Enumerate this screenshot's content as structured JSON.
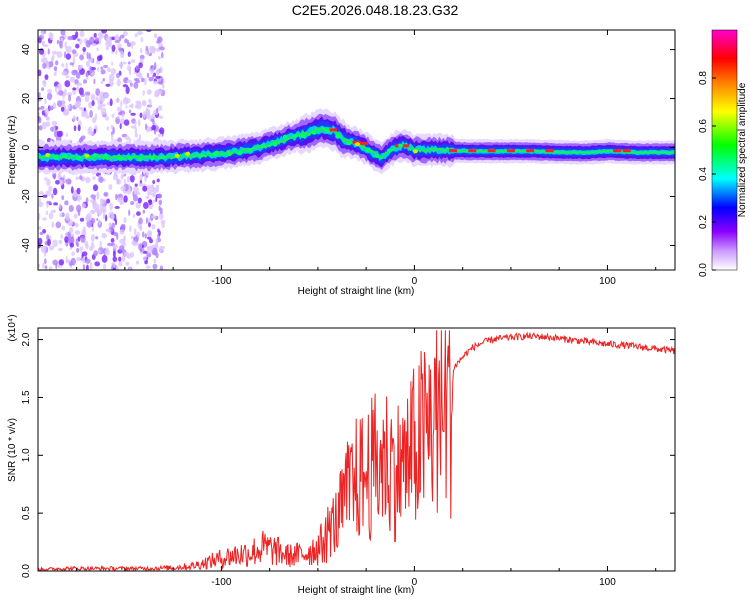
{
  "title": "C2E5.2026.048.18.23.G32",
  "chart_data": [
    {
      "type": "heatmap",
      "name": "spectrogram",
      "xlabel": "Height of straight line (km)",
      "ylabel": "Frequency (Hz)",
      "xlim": [
        -195,
        135
      ],
      "ylim": [
        -50,
        48
      ],
      "xticks": [
        -100,
        0,
        100
      ],
      "xtick_labels": [
        "-100",
        "0",
        "100"
      ],
      "yticks": [
        40,
        20,
        0,
        -20,
        -40
      ],
      "ytick_labels": [
        "40",
        "20",
        "0",
        "-20",
        "-40"
      ],
      "colorbar": {
        "label": "Normalized spectral amplitude",
        "range": [
          0,
          1
        ],
        "ticks": [
          0.0,
          0.2,
          0.4,
          0.6,
          0.8
        ],
        "tick_labels": [
          "0.0",
          "0.2",
          "0.4",
          "0.6",
          "0.8"
        ],
        "colors": [
          "#ffffff",
          "#8b00ff",
          "#0000ff",
          "#00ffff",
          "#00ff00",
          "#ffff00",
          "#ff8000",
          "#ff0000",
          "#ff00ff"
        ]
      },
      "ridge": {
        "x": [
          -195,
          -160,
          -130,
          -110,
          -95,
          -80,
          -65,
          -55,
          -48,
          -42,
          -38,
          -32,
          -28,
          -24,
          -20,
          -17,
          -14,
          -10,
          -5,
          0,
          10,
          30,
          60,
          80,
          90,
          100,
          115,
          135
        ],
        "freq": [
          -4,
          -4,
          -4,
          -3,
          -2,
          0,
          4,
          6,
          8,
          7,
          4,
          2,
          1,
          -1,
          -3,
          -4,
          -2,
          0,
          1,
          -1,
          -1,
          -1.5,
          -1.5,
          -2,
          -2,
          -1.5,
          -2,
          -2
        ]
      }
    },
    {
      "type": "line",
      "name": "snr",
      "xlabel": "Height of straight line (km)",
      "ylabel": "SNR (10 * v/v)",
      "yscale_note": "(x10⁴)",
      "xlim": [
        -195,
        135
      ],
      "ylim": [
        0,
        2.1
      ],
      "xticks": [
        -100,
        0,
        100
      ],
      "xtick_labels": [
        "-100",
        "0",
        "100"
      ],
      "yticks": [
        0.0,
        0.5,
        1.0,
        1.5,
        2.0
      ],
      "ytick_labels": [
        "0.0",
        "0.5",
        "1.0",
        "1.5",
        "2.0"
      ],
      "color": "#ee2222",
      "series": [
        {
          "name": "SNR",
          "x": [
            -195,
            -180,
            -160,
            -140,
            -125,
            -115,
            -105,
            -95,
            -85,
            -78,
            -72,
            -65,
            -58,
            -50,
            -45,
            -40,
            -35,
            -30,
            -25,
            -20,
            -15,
            -10,
            -5,
            0,
            5,
            10,
            15,
            20,
            25,
            30,
            35,
            40,
            50,
            60,
            70,
            80,
            90,
            100,
            110,
            120,
            135
          ],
          "y": [
            0.02,
            0.03,
            0.03,
            0.03,
            0.04,
            0.06,
            0.12,
            0.18,
            0.22,
            0.28,
            0.24,
            0.18,
            0.2,
            0.28,
            0.4,
            0.5,
            0.75,
            0.9,
            0.95,
            1.05,
            1.1,
            1.0,
            1.05,
            1.2,
            1.35,
            1.5,
            1.65,
            1.75,
            1.85,
            1.93,
            1.97,
            2.0,
            2.02,
            2.03,
            2.02,
            2.0,
            1.98,
            1.96,
            1.95,
            1.93,
            1.9
          ]
        }
      ]
    }
  ]
}
